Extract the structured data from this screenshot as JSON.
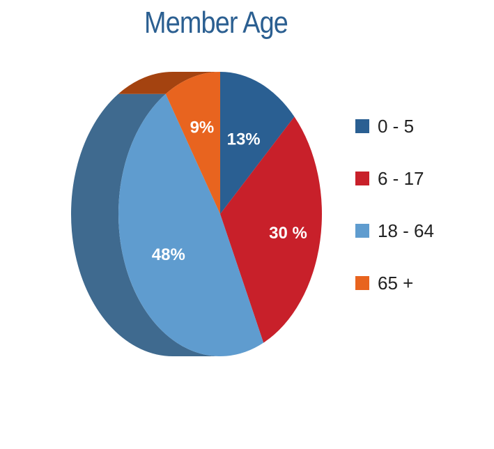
{
  "chart_data": {
    "type": "pie",
    "title": "Member Age",
    "categories": [
      "0 - 5",
      "6 - 17",
      "18 - 64",
      "65 +"
    ],
    "values": [
      13,
      30,
      48,
      9
    ],
    "labels": [
      "13%",
      "30 %",
      "48%",
      "9%"
    ],
    "colors": [
      "#2a5f92",
      "#c8202a",
      "#5f9ccf",
      "#e8641f"
    ],
    "side_colors": [
      "#1f4770",
      "#8e1a20",
      "#3f6a8f",
      "#a44310"
    ],
    "legend_position": "right",
    "style": "3d"
  }
}
